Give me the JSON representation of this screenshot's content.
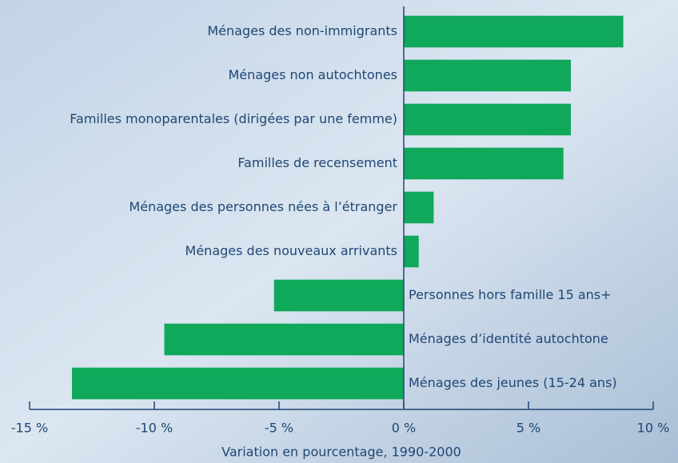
{
  "chart_data": {
    "type": "barh",
    "categories": [
      "Ménages des non-immigrants",
      "Ménages non autochtones",
      "Familles monoparentales (dirigées par une femme)",
      "Familles de recensement",
      "Ménages des personnes nées à l’étranger",
      "Ménages des nouveaux arrivants",
      "Personnes hors famille 15 ans+",
      "Ménages d’identité autochtone",
      "Ménages des jeunes (15-24 ans)"
    ],
    "values": [
      8.8,
      6.7,
      6.7,
      6.4,
      1.2,
      0.6,
      -5.2,
      -9.6,
      -13.3
    ],
    "color": "#10a85a",
    "xlabel": "Variation en pourcentage, 1990-2000",
    "xlim": [
      -15,
      10
    ],
    "xticks": [
      {
        "value": -15,
        "label": "-15 %"
      },
      {
        "value": -10,
        "label": "-10 %"
      },
      {
        "value": -5,
        "label": "-5 %"
      },
      {
        "value": 0,
        "label": "0 %"
      },
      {
        "value": 5,
        "label": "5 %"
      },
      {
        "value": 10,
        "label": "10 %"
      }
    ]
  }
}
